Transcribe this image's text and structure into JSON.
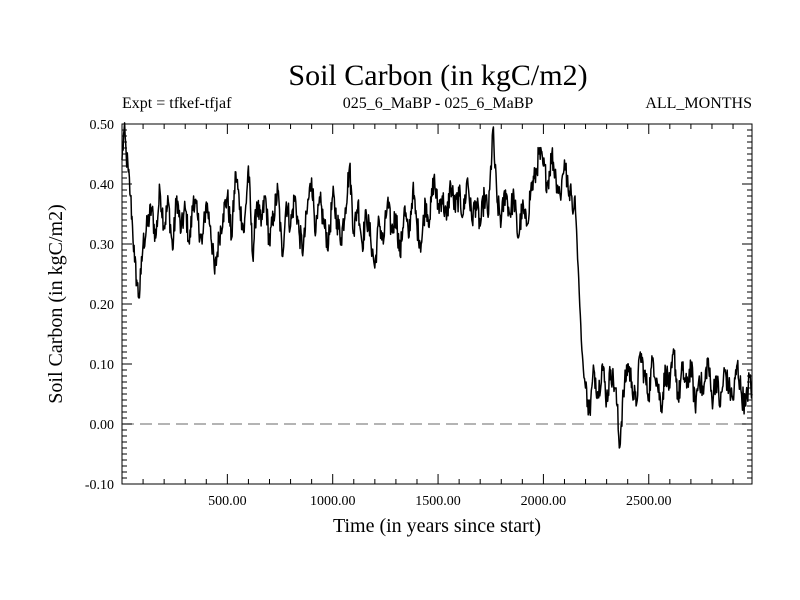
{
  "chart_data": {
    "type": "line",
    "title": "Soil Carbon (in kgC/m2)",
    "subtitle_left": "Expt = tfkef-tfjaf",
    "subtitle_center": "025_6_MaBP - 025_6_MaBP",
    "subtitle_right": "ALL_MONTHS",
    "xlabel": "Time (in years since start)",
    "ylabel": "Soil Carbon (in kgC/m2)",
    "xlim": [
      0,
      2990
    ],
    "ylim": [
      -0.1,
      0.5
    ],
    "xticks": [
      500,
      1000,
      1500,
      2000,
      2500
    ],
    "xtick_labels": [
      "500.00",
      "1000.00",
      "1500.00",
      "2000.00",
      "2500.00"
    ],
    "yticks": [
      -0.1,
      0.0,
      0.1,
      0.2,
      0.3,
      0.4,
      0.5
    ],
    "ytick_labels": [
      "-0.10",
      "0.00",
      "0.10",
      "0.20",
      "0.30",
      "0.40",
      "0.50"
    ],
    "reference_line": {
      "y": 0.0,
      "style": "dashed",
      "color": "#888888"
    },
    "line_color": "#000000",
    "grid": false,
    "series": [
      {
        "x": [
          0,
          10,
          20,
          30,
          40,
          50,
          60,
          70,
          80,
          90,
          100,
          120,
          140,
          160,
          180,
          200,
          220,
          240,
          260,
          280,
          300,
          320,
          340,
          360,
          380,
          400,
          420,
          440,
          460,
          480,
          500,
          520,
          540,
          560,
          580,
          600,
          620,
          640,
          660,
          680,
          700,
          720,
          740,
          760,
          780,
          800,
          820,
          840,
          860,
          880,
          900,
          920,
          940,
          960,
          980,
          1000,
          1020,
          1040,
          1060,
          1080,
          1100,
          1120,
          1140,
          1160,
          1180,
          1200,
          1220,
          1240,
          1260,
          1280,
          1300,
          1320,
          1340,
          1360,
          1380,
          1400,
          1420,
          1440,
          1460,
          1480,
          1500,
          1520,
          1540,
          1560,
          1580,
          1600,
          1620,
          1640,
          1660,
          1680,
          1700,
          1720,
          1740,
          1760,
          1780,
          1800,
          1820,
          1840,
          1860,
          1880,
          1900,
          1920,
          1940,
          1960,
          1980,
          2000,
          2020,
          2040,
          2060,
          2080,
          2100,
          2120,
          2130,
          2140,
          2150,
          2160,
          2170,
          2180,
          2190,
          2200,
          2210,
          2220,
          2240,
          2260,
          2280,
          2300,
          2320,
          2340,
          2350,
          2360,
          2380,
          2400,
          2420,
          2440,
          2460,
          2480,
          2500,
          2520,
          2540,
          2560,
          2580,
          2600,
          2620,
          2640,
          2660,
          2680,
          2700,
          2720,
          2740,
          2760,
          2780,
          2800,
          2820,
          2840,
          2860,
          2880,
          2900,
          2920,
          2940,
          2960,
          2980,
          2990
        ],
        "y": [
          0.44,
          0.49,
          0.45,
          0.42,
          0.38,
          0.33,
          0.27,
          0.24,
          0.21,
          0.25,
          0.3,
          0.33,
          0.36,
          0.31,
          0.39,
          0.33,
          0.37,
          0.29,
          0.38,
          0.32,
          0.36,
          0.3,
          0.38,
          0.34,
          0.3,
          0.37,
          0.33,
          0.25,
          0.31,
          0.35,
          0.38,
          0.31,
          0.42,
          0.36,
          0.32,
          0.43,
          0.28,
          0.37,
          0.33,
          0.38,
          0.3,
          0.35,
          0.39,
          0.28,
          0.37,
          0.33,
          0.38,
          0.32,
          0.29,
          0.36,
          0.41,
          0.32,
          0.37,
          0.33,
          0.3,
          0.38,
          0.34,
          0.31,
          0.36,
          0.43,
          0.32,
          0.37,
          0.3,
          0.35,
          0.31,
          0.26,
          0.34,
          0.3,
          0.37,
          0.32,
          0.35,
          0.28,
          0.36,
          0.31,
          0.39,
          0.33,
          0.3,
          0.37,
          0.34,
          0.41,
          0.36,
          0.38,
          0.34,
          0.4,
          0.36,
          0.38,
          0.35,
          0.41,
          0.34,
          0.37,
          0.33,
          0.38,
          0.35,
          0.49,
          0.37,
          0.34,
          0.39,
          0.35,
          0.38,
          0.31,
          0.36,
          0.33,
          0.39,
          0.41,
          0.45,
          0.43,
          0.4,
          0.45,
          0.41,
          0.38,
          0.44,
          0.38,
          0.4,
          0.35,
          0.38,
          0.3,
          0.22,
          0.14,
          0.09,
          0.06,
          0.04,
          0.02,
          0.09,
          0.05,
          0.1,
          0.04,
          0.09,
          0.06,
          0.03,
          -0.04,
          0.05,
          0.1,
          0.07,
          0.03,
          0.12,
          0.08,
          0.05,
          0.11,
          0.07,
          0.03,
          0.09,
          0.06,
          0.12,
          0.04,
          0.09,
          0.06,
          0.1,
          0.03,
          0.08,
          0.05,
          0.11,
          0.04,
          0.08,
          0.03,
          0.09,
          0.06,
          0.04,
          0.1,
          0.05,
          0.03,
          0.08,
          0.05
        ]
      }
    ]
  }
}
